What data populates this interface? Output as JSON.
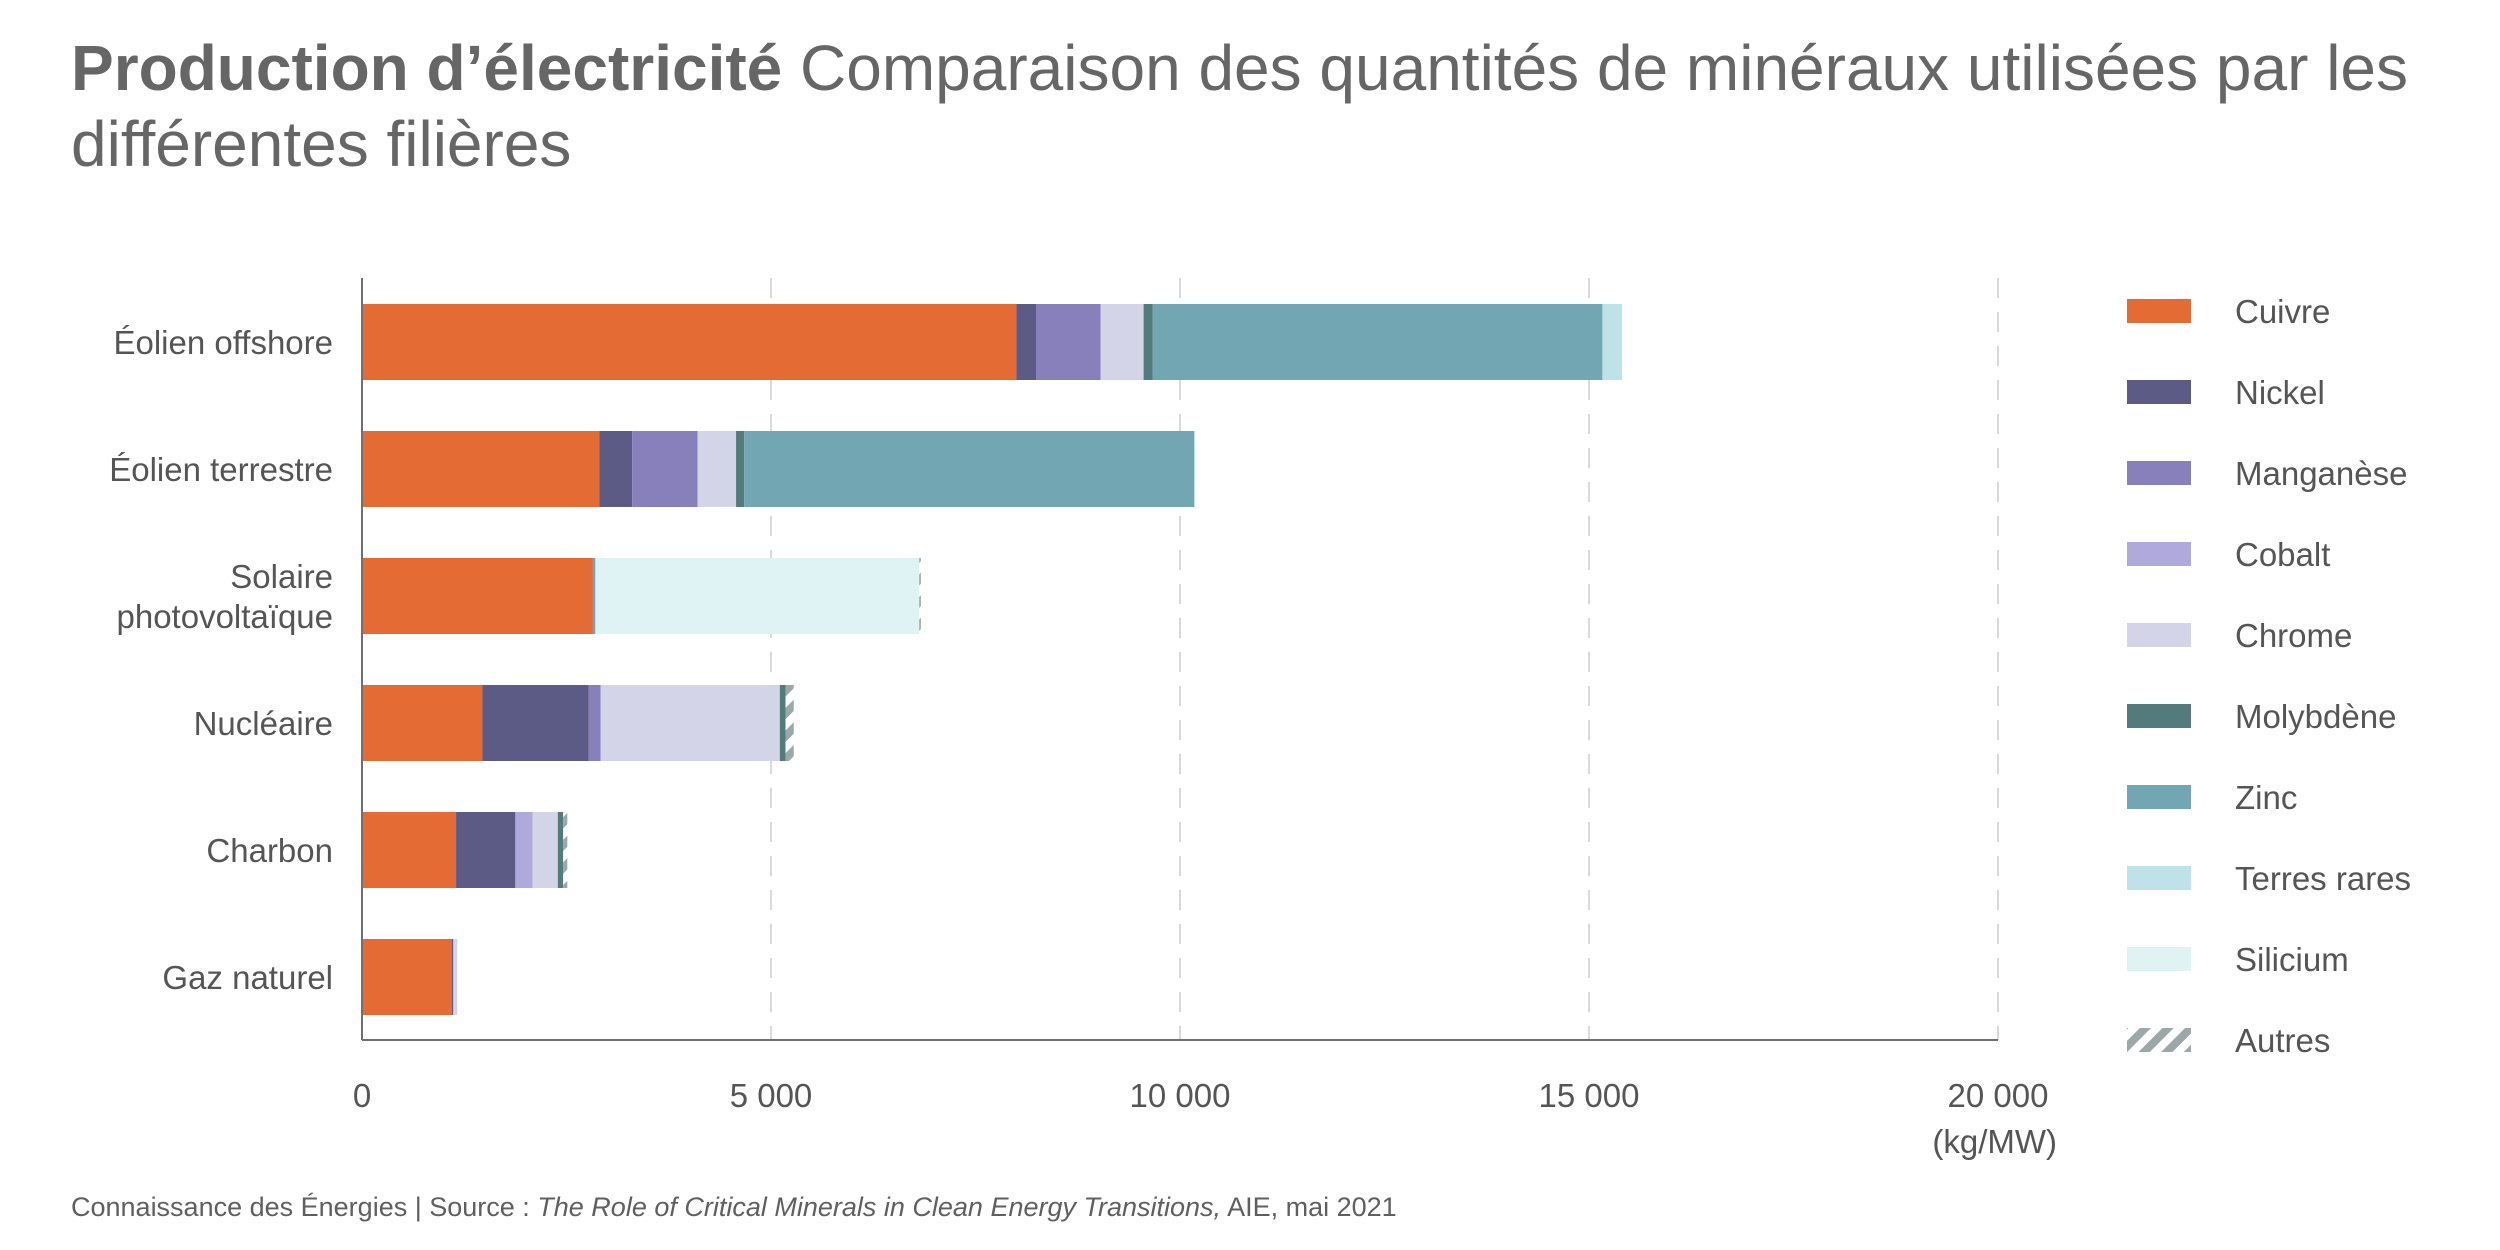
{
  "title": {
    "bold": "Production d’électricité",
    "rest": "Comparaison des quantités de minéraux utilisées par les différentes filières"
  },
  "footer": {
    "prefix": "Connaissance des Énergies | Source : ",
    "italic": "The Role of Critical Minerals in Clean Energy Transitions,",
    "suffix": " AIE, mai 2021"
  },
  "colors": {
    "Cuivre": "#e46b33",
    "Nickel": "#5c5b86",
    "Manganèse": "#8780bb",
    "Cobalt": "#b0a9db",
    "Chrome": "#d4d4e9",
    "Molybdène": "#537b7c",
    "Zinc": "#72a6b2",
    "Terres rares": "#bfe2e8",
    "Silicium": "#dff2f4",
    "Autres": "#9aa9a8"
  },
  "chart_data": {
    "type": "bar",
    "orientation": "horizontal",
    "stacked": true,
    "title": "Production d’électricité Comparaison des quantités de minéraux utilisées par les différentes filières",
    "xlabel": "(kg/MW)",
    "ylabel": "",
    "xlim": [
      0,
      20000
    ],
    "xticks": [
      0,
      5000,
      10000,
      15000,
      20000
    ],
    "xtick_labels": [
      "0",
      "5 000",
      "10 000",
      "15 000",
      "20 000"
    ],
    "unit_label": "(kg/MW)",
    "grid": "vertical dashed",
    "legend_position": "right",
    "categories": [
      [
        "Éolien offshore"
      ],
      [
        "Éolien terrestre"
      ],
      [
        "Solaire",
        "photovoltaïque"
      ],
      [
        "Nucléaire"
      ],
      [
        "Charbon"
      ],
      [
        "Gaz naturel"
      ]
    ],
    "series": [
      {
        "name": "Cuivre",
        "values": [
          8000,
          2900,
          2822,
          1473,
          1150,
          1100
        ]
      },
      {
        "name": "Nickel",
        "values": [
          240,
          403,
          1,
          1297,
          721,
          16
        ]
      },
      {
        "name": "Manganèse",
        "values": [
          790,
          800,
          0,
          148,
          5,
          0
        ]
      },
      {
        "name": "Cobalt",
        "values": [
          0,
          0,
          0,
          0,
          210,
          0
        ]
      },
      {
        "name": "Chrome",
        "values": [
          525,
          470,
          0,
          2190,
          308,
          48
        ]
      },
      {
        "name": "Molybdène",
        "values": [
          109,
          99,
          0,
          70,
          66,
          0
        ]
      },
      {
        "name": "Zinc",
        "values": [
          5500,
          5500,
          30,
          0,
          0,
          0
        ]
      },
      {
        "name": "Terres rares",
        "values": [
          239,
          14,
          0,
          0,
          0,
          0
        ]
      },
      {
        "name": "Silicium",
        "values": [
          0,
          0,
          3959,
          0,
          0,
          0
        ]
      },
      {
        "name": "Autres",
        "values": [
          0,
          0,
          20,
          100,
          50,
          0
        ]
      }
    ]
  }
}
